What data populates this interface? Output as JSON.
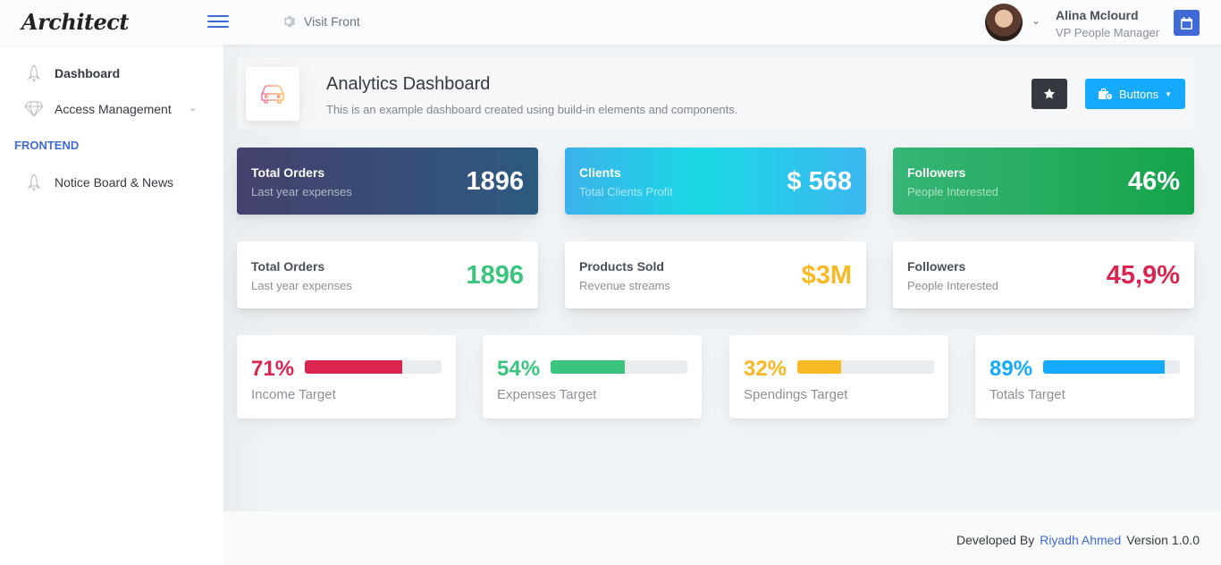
{
  "header": {
    "logo_text": "Architect",
    "visit_front_label": "Visit Front",
    "user_name": "Alina Mclourd",
    "user_role": "VP People Manager"
  },
  "sidebar": {
    "items": [
      {
        "label": "Dashboard",
        "icon": "rocket-icon",
        "active": true
      },
      {
        "label": "Access Management",
        "icon": "diamond-icon",
        "expandable": true
      }
    ],
    "section_heading": "FRONTEND",
    "section_items": [
      {
        "label": "Notice Board & News",
        "icon": "rocket-icon"
      }
    ]
  },
  "page_title": {
    "heading": "Analytics Dashboard",
    "subheading": "This is an example dashboard created using build-in elements and components.",
    "buttons_label": "Buttons"
  },
  "gradient_cards": [
    {
      "title": "Total Orders",
      "subtitle": "Last year expenses",
      "value": "1896"
    },
    {
      "title": "Clients",
      "subtitle": "Total Clients Profit",
      "value": "$ 568"
    },
    {
      "title": "Followers",
      "subtitle": "People Interested",
      "value": "46%"
    }
  ],
  "white_cards": [
    {
      "title": "Total Orders",
      "subtitle": "Last year expenses",
      "value": "1896",
      "color": "#3ac47d"
    },
    {
      "title": "Products Sold",
      "subtitle": "Revenue streams",
      "value": "$3M",
      "color": "#f7b924"
    },
    {
      "title": "Followers",
      "subtitle": "People Interested",
      "value": "45,9%",
      "color": "#d92550"
    }
  ],
  "progress_cards": [
    {
      "percent_label": "71%",
      "percent": 71,
      "label": "Income Target",
      "color": "#d92550"
    },
    {
      "percent_label": "54%",
      "percent": 54,
      "label": "Expenses Target",
      "color": "#3ac47d"
    },
    {
      "percent_label": "32%",
      "percent": 32,
      "label": "Spendings Target",
      "color": "#f7b924"
    },
    {
      "percent_label": "89%",
      "percent": 89,
      "label": "Totals Target",
      "color": "#16aaff"
    }
  ],
  "footer": {
    "prefix": "Developed By",
    "author": "Riyadh Ahmed",
    "version": "Version 1.0.0"
  }
}
